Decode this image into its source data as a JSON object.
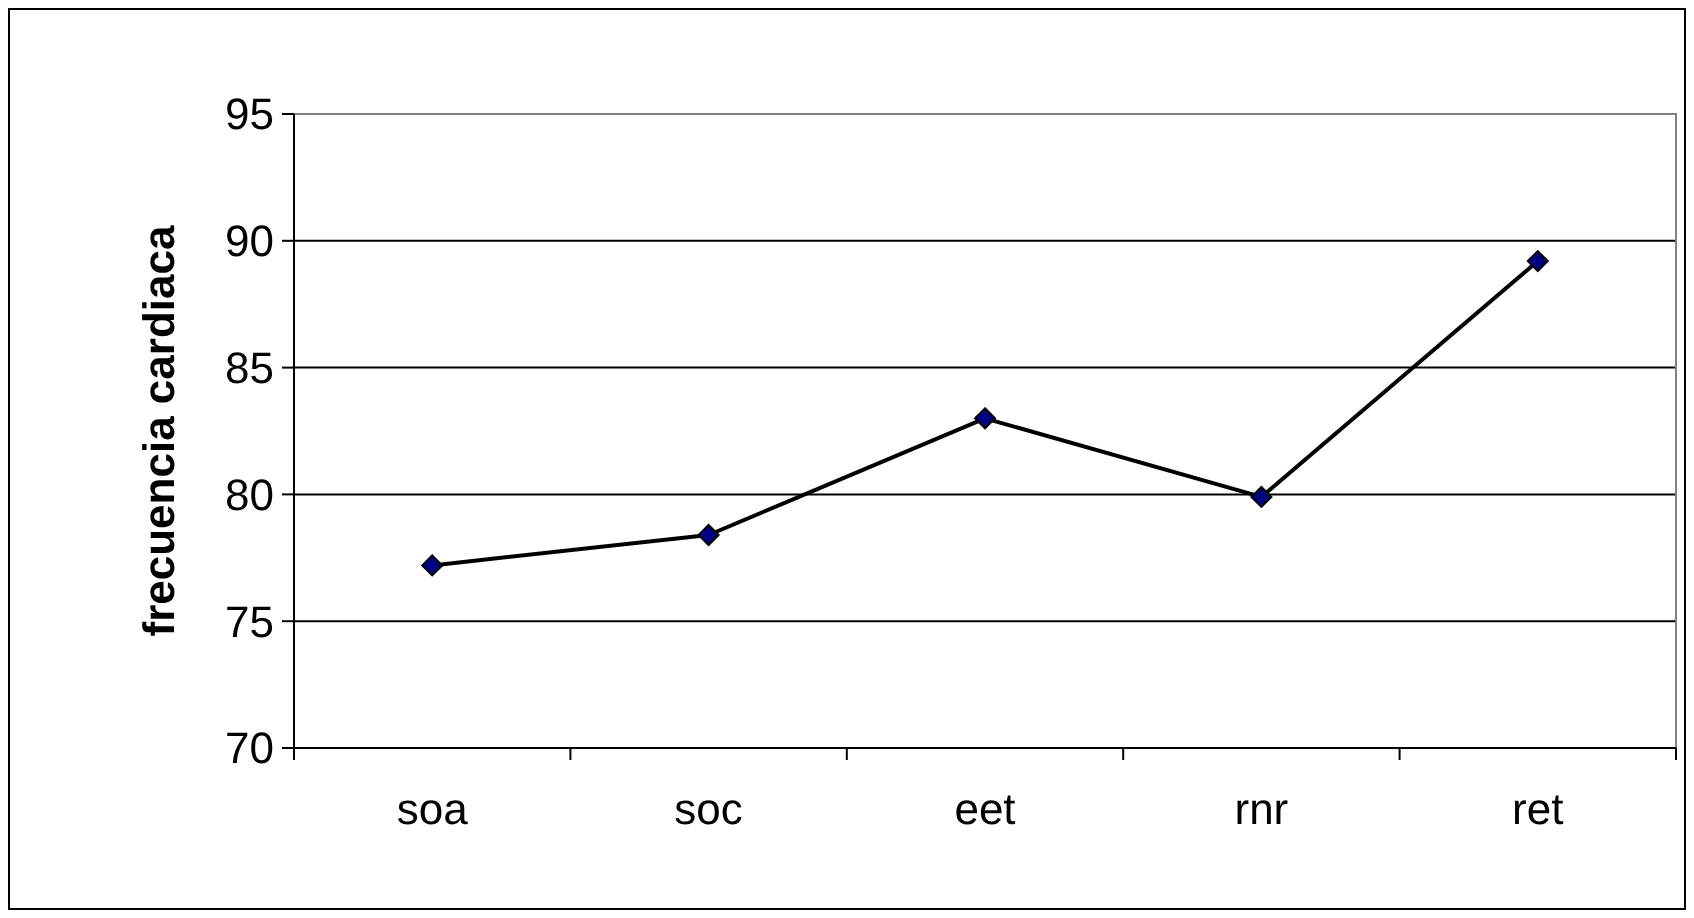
{
  "chart_data": {
    "type": "line",
    "ylabel": "frecuencia cardiaca",
    "categories": [
      "soa",
      "soc",
      "eet",
      "rnr",
      "ret"
    ],
    "series": [
      {
        "color": "#000080",
        "values": [
          77.2,
          78.4,
          83.0,
          79.9,
          89.2
        ]
      }
    ],
    "ylim": [
      70,
      95
    ],
    "yticks": [
      70,
      75,
      80,
      85,
      90,
      95
    ],
    "grid": "y",
    "marker": "diamond",
    "line_style": "solid"
  }
}
